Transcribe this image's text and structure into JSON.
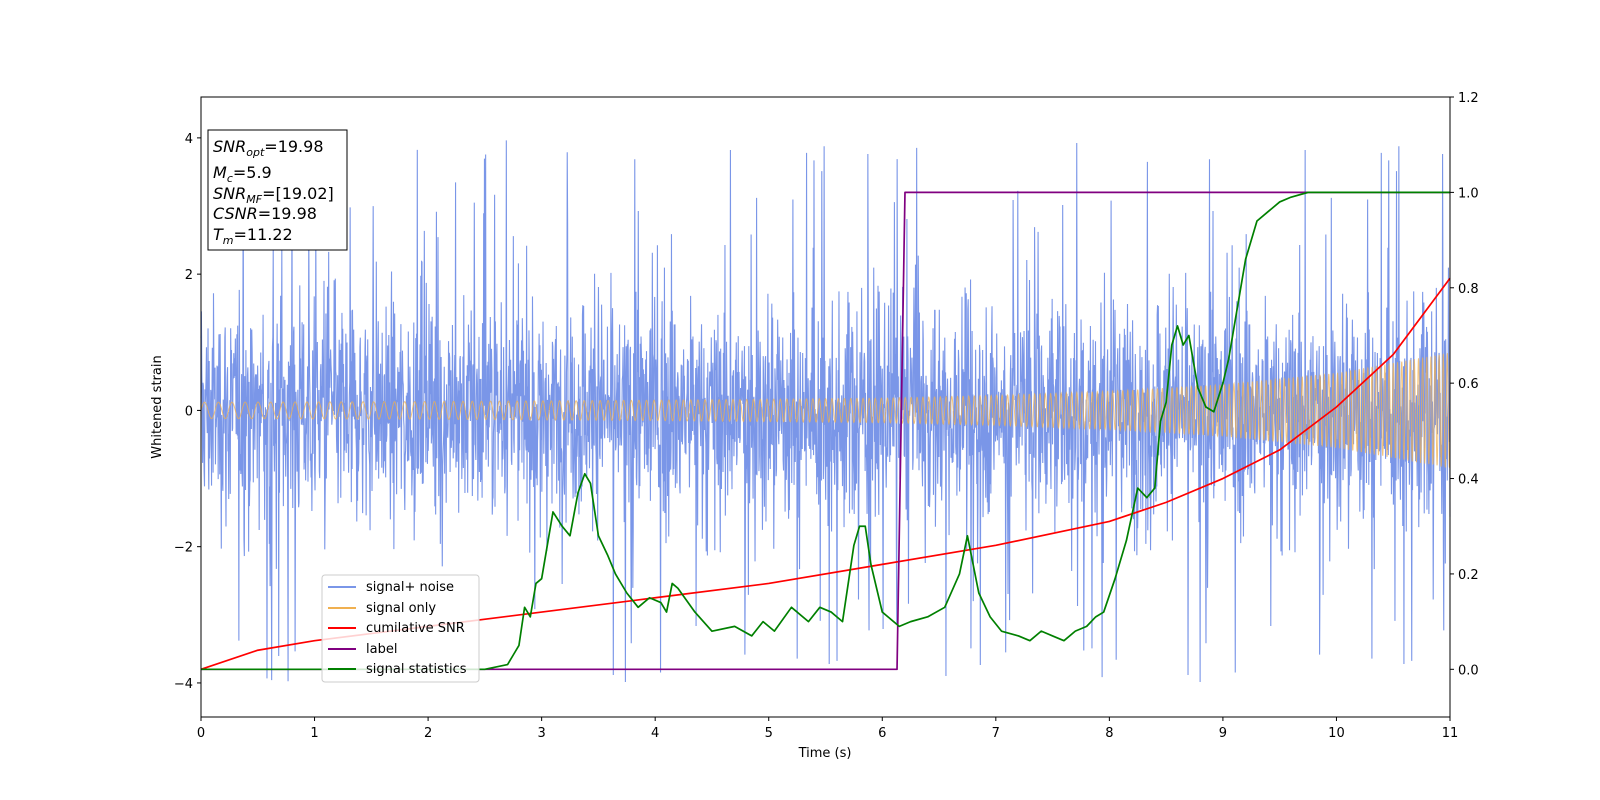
{
  "chart_data": {
    "type": "line",
    "title": "",
    "xlabel": "Time (s)",
    "ylabel": "Whitened strain",
    "y2label": "",
    "xlim": [
      0,
      11
    ],
    "ylim": [
      -4.5,
      4.6
    ],
    "y2lim": [
      -0.1,
      1.2
    ],
    "xticks": [
      "0",
      "1",
      "2",
      "3",
      "4",
      "5",
      "6",
      "7",
      "8",
      "9",
      "10",
      "11"
    ],
    "yticks": [
      "4",
      "2",
      "0",
      "−2",
      "−4"
    ],
    "y2ticks": [
      "1.2",
      "1.0",
      "0.8",
      "0.6",
      "0.4",
      "0.2",
      "0.0"
    ],
    "grid": false,
    "legend_position": "lower-left",
    "info_box": {
      "snr_opt": {
        "sym": "SNR",
        "sub": "opt",
        "val": "=19.98"
      },
      "mc": {
        "sym": "M",
        "sub": "c",
        "val": "=5.9"
      },
      "snr_mf": {
        "sym": "SNR",
        "sub": "MF",
        "val": "=[19.02]"
      },
      "csnr": {
        "sym": "CSNR",
        "sub": "",
        "val": "=19.98"
      },
      "tm": {
        "sym": "T",
        "sub": "m",
        "val": "=11.22"
      }
    },
    "series": [
      {
        "name": "signal+ noise",
        "color": "#7a96e8",
        "axis": "left",
        "style": "noise band",
        "envelope": {
          "x": [
            0,
            11
          ],
          "low_typical": -1.8,
          "high_typical": 2.0,
          "spike_max": 4.15,
          "spike_min": -4.1
        }
      },
      {
        "name": "signal only",
        "color": "#f0b050",
        "axis": "left",
        "style": "chirp",
        "amplitude_envelope": {
          "x": [
            0,
            2,
            4,
            6,
            7,
            8,
            9,
            10,
            11
          ],
          "amp": [
            0.12,
            0.13,
            0.15,
            0.18,
            0.22,
            0.28,
            0.38,
            0.55,
            0.85
          ]
        }
      },
      {
        "name": "cumilative SNR",
        "color": "#ff0000",
        "axis": "right",
        "x": [
          0,
          0.5,
          1,
          2,
          3,
          4,
          5,
          6,
          7,
          8,
          8.5,
          9,
          9.5,
          10,
          10.5,
          11
        ],
        "y": [
          0.0,
          0.04,
          0.06,
          0.09,
          0.12,
          0.15,
          0.18,
          0.22,
          0.26,
          0.31,
          0.35,
          0.4,
          0.46,
          0.55,
          0.66,
          0.82
        ]
      },
      {
        "name": "label",
        "color": "#800080",
        "axis": "right",
        "x": [
          0,
          6.13,
          6.2,
          11
        ],
        "y": [
          0.0,
          0.0,
          1.0,
          1.0
        ]
      },
      {
        "name": "signal statistics",
        "color": "#008000",
        "axis": "right",
        "x": [
          0,
          2.5,
          2.7,
          2.75,
          2.8,
          2.85,
          2.9,
          2.95,
          3.0,
          3.1,
          3.18,
          3.25,
          3.32,
          3.38,
          3.43,
          3.5,
          3.58,
          3.65,
          3.75,
          3.85,
          3.95,
          4.05,
          4.1,
          4.15,
          4.2,
          4.35,
          4.5,
          4.7,
          4.85,
          4.95,
          5.05,
          5.2,
          5.35,
          5.45,
          5.55,
          5.6,
          5.65,
          5.7,
          5.75,
          5.8,
          5.85,
          5.9,
          6.0,
          6.15,
          6.25,
          6.4,
          6.55,
          6.68,
          6.75,
          6.85,
          6.95,
          7.05,
          7.2,
          7.3,
          7.4,
          7.5,
          7.6,
          7.7,
          7.8,
          7.88,
          7.95,
          8.05,
          8.15,
          8.25,
          8.33,
          8.4,
          8.45,
          8.5,
          8.55,
          8.6,
          8.65,
          8.7,
          8.78,
          8.85,
          8.92,
          9.0,
          9.05,
          9.1,
          9.15,
          9.2,
          9.3,
          9.4,
          9.5,
          9.6,
          9.75,
          9.9,
          10.2,
          10.5,
          11
        ],
        "y": [
          0.0,
          0.0,
          0.01,
          0.03,
          0.05,
          0.13,
          0.11,
          0.18,
          0.19,
          0.33,
          0.3,
          0.28,
          0.37,
          0.41,
          0.39,
          0.28,
          0.24,
          0.2,
          0.16,
          0.13,
          0.15,
          0.14,
          0.12,
          0.18,
          0.17,
          0.12,
          0.08,
          0.09,
          0.07,
          0.1,
          0.08,
          0.13,
          0.1,
          0.13,
          0.12,
          0.11,
          0.1,
          0.18,
          0.26,
          0.3,
          0.3,
          0.22,
          0.12,
          0.09,
          0.1,
          0.11,
          0.13,
          0.2,
          0.28,
          0.16,
          0.11,
          0.08,
          0.07,
          0.06,
          0.08,
          0.07,
          0.06,
          0.08,
          0.09,
          0.11,
          0.12,
          0.19,
          0.27,
          0.38,
          0.36,
          0.38,
          0.52,
          0.56,
          0.68,
          0.72,
          0.68,
          0.7,
          0.59,
          0.55,
          0.54,
          0.6,
          0.65,
          0.72,
          0.79,
          0.86,
          0.94,
          0.96,
          0.98,
          0.99,
          1.0,
          1.0,
          1.0,
          1.0,
          1.0
        ]
      }
    ]
  }
}
